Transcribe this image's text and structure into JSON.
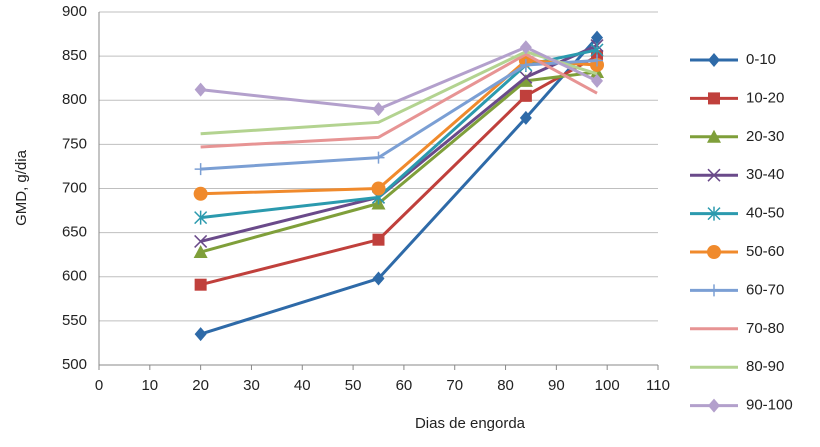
{
  "chart_data": {
    "type": "line",
    "x_label": "Dias de engorda",
    "y_label": "GMD, g/dia",
    "x": [
      20,
      55,
      84,
      98
    ],
    "xlim": [
      0,
      110
    ],
    "xticks": [
      0,
      10,
      20,
      30,
      40,
      50,
      60,
      70,
      80,
      90,
      100,
      110
    ],
    "ylim": [
      500,
      900
    ],
    "yticks": [
      500,
      550,
      600,
      650,
      700,
      750,
      800,
      850,
      900
    ],
    "grid": true,
    "legend": "right",
    "series": [
      {
        "name": "0-10",
        "color": "#2e6aa8",
        "marker": "diamond",
        "values": [
          535,
          598,
          780,
          871
        ]
      },
      {
        "name": "10-20",
        "color": "#c0403c",
        "marker": "square",
        "values": [
          591,
          642,
          805,
          850
        ]
      },
      {
        "name": "20-30",
        "color": "#7f9f3a",
        "marker": "triangle",
        "values": [
          628,
          683,
          822,
          832
        ]
      },
      {
        "name": "30-40",
        "color": "#6a4a8a",
        "marker": "x",
        "values": [
          640,
          690,
          826,
          862
        ]
      },
      {
        "name": "40-50",
        "color": "#2b9aae",
        "marker": "star",
        "values": [
          667,
          690,
          840,
          857
        ]
      },
      {
        "name": "50-60",
        "color": "#f08a2c",
        "marker": "circle",
        "values": [
          694,
          700,
          845,
          840
        ]
      },
      {
        "name": "60-70",
        "color": "#7b9fd4",
        "marker": "plus",
        "values": [
          722,
          735,
          840,
          845
        ]
      },
      {
        "name": "70-80",
        "color": "#e79494",
        "marker": "none",
        "values": [
          747,
          758,
          852,
          808
        ]
      },
      {
        "name": "80-90",
        "color": "#b3d390",
        "marker": "none",
        "values": [
          762,
          775,
          855,
          830
        ]
      },
      {
        "name": "90-100",
        "color": "#b3a0cc",
        "marker": "diamond",
        "values": [
          812,
          790,
          860,
          822
        ]
      }
    ]
  }
}
